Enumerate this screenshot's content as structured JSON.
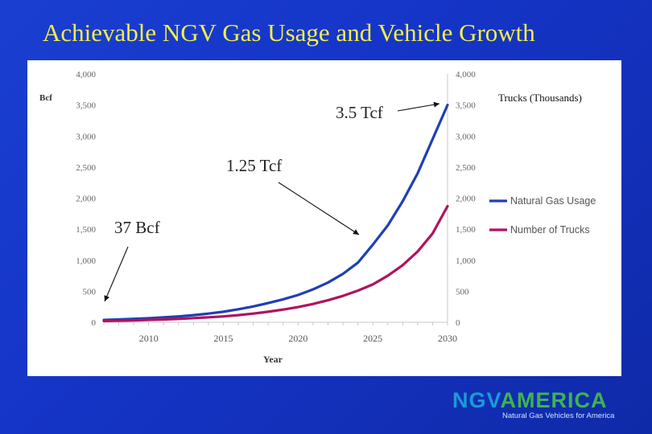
{
  "slide": {
    "title": "Achievable NGV Gas Usage and Vehicle Growth"
  },
  "chart_data": {
    "type": "line",
    "xlabel": "Year",
    "ylabel_left": "Bcf",
    "ylabel_right": "Trucks (Thousands)",
    "x_ticks": [
      2010,
      2015,
      2020,
      2025,
      2030
    ],
    "xlim": [
      2007,
      2030
    ],
    "ylim_left": [
      0,
      4000
    ],
    "ylim_right": [
      0,
      4000
    ],
    "y_ticks": [
      "0",
      "500",
      "1,000",
      "1,500",
      "2,000",
      "2,500",
      "3,000",
      "3,500",
      "4,000"
    ],
    "grid": false,
    "legend_position": "right",
    "series": [
      {
        "name": "Natural Gas Usage",
        "color": "#1f3fb4",
        "axis": "left",
        "x": [
          2007,
          2008,
          2009,
          2010,
          2011,
          2012,
          2013,
          2014,
          2015,
          2016,
          2017,
          2018,
          2019,
          2020,
          2021,
          2022,
          2023,
          2024,
          2025,
          2026,
          2027,
          2028,
          2029,
          2030
        ],
        "values": [
          37,
          45,
          55,
          65,
          80,
          95,
          115,
          140,
          170,
          210,
          255,
          310,
          370,
          440,
          530,
          640,
          780,
          960,
          1250,
          1560,
          1950,
          2400,
          2950,
          3500
        ]
      },
      {
        "name": "Number of Trucks",
        "color": "#b0135f",
        "axis": "right",
        "x": [
          2007,
          2008,
          2009,
          2010,
          2011,
          2012,
          2013,
          2014,
          2015,
          2016,
          2017,
          2018,
          2019,
          2020,
          2021,
          2022,
          2023,
          2024,
          2025,
          2026,
          2027,
          2028,
          2029,
          2030
        ],
        "values": [
          20,
          25,
          30,
          38,
          45,
          55,
          67,
          80,
          95,
          115,
          140,
          170,
          205,
          245,
          295,
          355,
          425,
          510,
          610,
          750,
          920,
          1140,
          1430,
          1870
        ]
      }
    ],
    "annotations": [
      {
        "text": "37 Bcf",
        "x": 2007,
        "y": 37
      },
      {
        "text": "1.25 Tcf",
        "x": 2025,
        "y": 1250
      },
      {
        "text": "3.5 Tcf",
        "x": 2030,
        "y": 3500
      }
    ]
  },
  "logo": {
    "ngv": "NGV",
    "america": "AMERICA",
    "tagline": "Natural Gas Vehicles for America",
    "color_ngv": "#1a9bd7",
    "color_america": "#3fb34f"
  }
}
